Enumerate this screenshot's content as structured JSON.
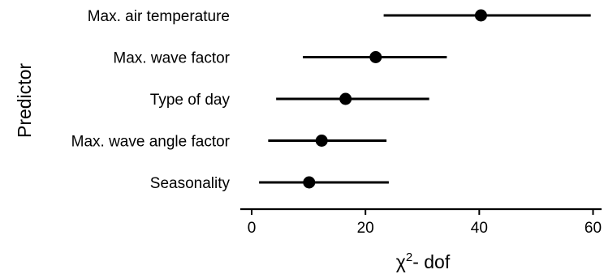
{
  "chart_data": {
    "type": "dot-interval",
    "orientation": "horizontal",
    "ylabel": "Predictor",
    "xlabel": {
      "symbol": "χ",
      "superscript": "2",
      "rest": "- dof"
    },
    "xlim": [
      -2,
      61.5
    ],
    "xticks": [
      0,
      20,
      40,
      60
    ],
    "grid": false,
    "categories": [
      "Max. air temperature",
      "Max. wave factor",
      "Type of day",
      "Max. wave angle factor",
      "Seasonality"
    ],
    "series": [
      {
        "estimate": [
          40.3,
          21.8,
          16.5,
          12.3,
          10.1
        ],
        "lower": [
          23.2,
          9.0,
          4.3,
          2.9,
          1.3
        ],
        "upper": [
          59.6,
          34.3,
          31.2,
          23.7,
          24.1
        ]
      }
    ],
    "colors": {
      "mark": "#000000"
    }
  }
}
